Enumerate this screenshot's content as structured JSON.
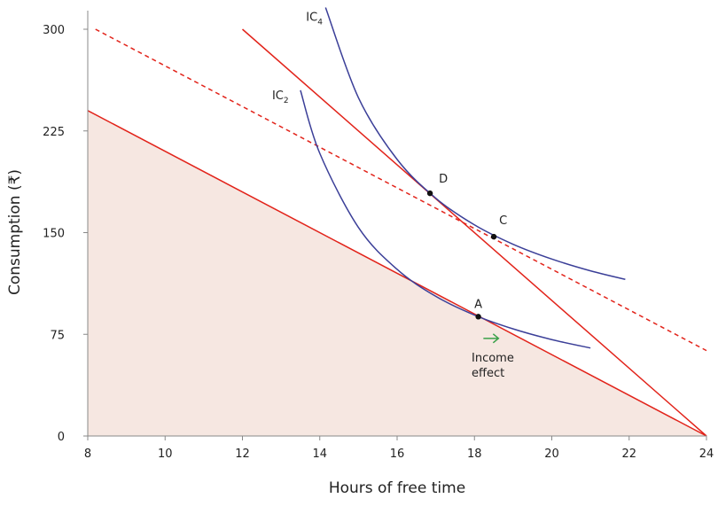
{
  "chart_data": {
    "type": "line",
    "title": "",
    "xlabel": "Hours of free time",
    "ylabel": "Consumption (₹)",
    "xlim": [
      8,
      24
    ],
    "ylim": [
      0,
      300
    ],
    "xticks": [
      8,
      10,
      12,
      14,
      16,
      18,
      20,
      22,
      24
    ],
    "yticks": [
      0,
      75,
      150,
      225,
      300
    ],
    "grid": false,
    "colors": {
      "budget": "#e2231a",
      "ic": "#3b3f98",
      "fill": "#f6e7e1",
      "arrow": "#3aa14a",
      "axis": "#888888"
    },
    "budget_lines": [
      {
        "points": [
          [
            8,
            240
          ],
          [
            24,
            0
          ]
        ],
        "style": "solid",
        "filled_below": true
      },
      {
        "points": [
          [
            12,
            300
          ],
          [
            24,
            0
          ]
        ],
        "style": "solid"
      },
      {
        "points": [
          [
            8.2,
            300
          ],
          [
            24,
            63
          ]
        ],
        "style": "dashed"
      }
    ],
    "curves": [
      {
        "label": "IC",
        "sub": "2",
        "points": [
          [
            13.5,
            255
          ],
          [
            14,
            208.5
          ],
          [
            15,
            153.8
          ],
          [
            16,
            122.9
          ],
          [
            17,
            103
          ],
          [
            18,
            89.2
          ],
          [
            19,
            79
          ],
          [
            20,
            71.1
          ],
          [
            21,
            64.9
          ]
        ]
      },
      {
        "label": "IC",
        "sub": "4",
        "points": [
          [
            14.15,
            316
          ],
          [
            15,
            249.5
          ],
          [
            16,
            204
          ],
          [
            17,
            175.4
          ],
          [
            18,
            155.7
          ],
          [
            19,
            141.4
          ],
          [
            20,
            130.5
          ],
          [
            21,
            121.8
          ],
          [
            21.9,
            115.5
          ]
        ]
      }
    ],
    "points": [
      {
        "label": "A",
        "x": 18.1,
        "y": 88
      },
      {
        "label": "D",
        "x": 16.85,
        "y": 179
      },
      {
        "label": "C",
        "x": 18.5,
        "y": 147
      }
    ],
    "annotation": {
      "line1": "Income",
      "line2": "effect",
      "x": 18.3,
      "y": 72
    }
  }
}
